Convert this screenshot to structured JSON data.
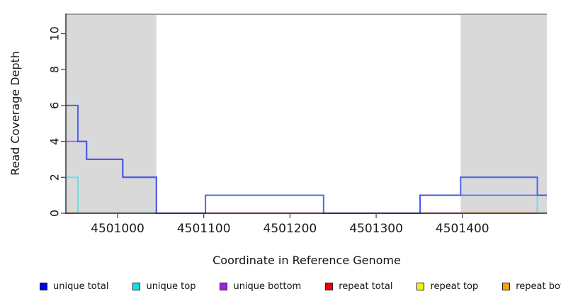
{
  "chart_data": {
    "type": "line",
    "subtype": "step-coverage",
    "title": "",
    "xlabel": "Coordinate in Reference Genome",
    "ylabel": "Read Coverage Depth",
    "x_range": [
      4500940,
      4501498
    ],
    "ylim": [
      0,
      11.08
    ],
    "top_line_depth": 11.08,
    "x_ticks": [
      4501000,
      4501100,
      4501200,
      4501300,
      4501400
    ],
    "y_ticks": [
      0,
      2,
      4,
      6,
      8,
      10
    ],
    "grid": "off",
    "legend_position": "bottom",
    "shade_color": "#d9d9d9",
    "shaded_regions": [
      {
        "x1": 4500940,
        "x2": 4501045
      },
      {
        "x1": 4501398,
        "x2": 4501498
      }
    ],
    "series": [
      {
        "name": "repeat top",
        "legend_color": "#f2f200",
        "plot_color": "#8fcf8f",
        "opacity": 1,
        "runs": [
          [
            [
              4500954,
              0
            ],
            [
              4501045,
              0
            ]
          ],
          [
            [
              4501487,
              0
            ],
            [
              4501498,
              0
            ]
          ]
        ]
      },
      {
        "name": "repeat bottom",
        "legend_color": "#ffa000",
        "plot_color": "#ff8c00",
        "opacity": 1,
        "runs": [
          [
            [
              4500940,
              0
            ],
            [
              4500954,
              0
            ]
          ],
          [
            [
              4501398,
              0
            ],
            [
              4501487,
              0
            ]
          ]
        ]
      },
      {
        "name": "repeat total",
        "legend_color": "#f00000",
        "plot_color": "#e04545",
        "opacity": 0.85,
        "runs": [
          [
            [
              4501102,
              0
            ],
            [
              4501398,
              0
            ]
          ]
        ]
      },
      {
        "name": "unique top",
        "legend_color": "#00e8e8",
        "plot_color": "#55e3e8",
        "opacity": 0.9,
        "runs": [
          [
            [
              4500940,
              2
            ],
            [
              4500954,
              2
            ],
            [
              4500954,
              0
            ]
          ],
          [
            [
              4501398,
              1
            ],
            [
              4501487,
              1
            ],
            [
              4501487,
              0
            ]
          ]
        ]
      },
      {
        "name": "unique bottom",
        "legend_color": "#9b20e8",
        "plot_color": "#7b2be0",
        "opacity": 0.6,
        "runs": [
          [
            [
              4500940,
              4
            ],
            [
              4500954,
              4
            ],
            [
              4500964,
              4
            ],
            [
              4500964,
              3
            ],
            [
              4501006,
              3
            ],
            [
              4501006,
              2
            ],
            [
              4501045,
              2
            ],
            [
              4501045,
              0
            ],
            [
              4501102,
              0
            ]
          ],
          [
            [
              4501239,
              0
            ],
            [
              4501351,
              0
            ],
            [
              4501351,
              1
            ],
            [
              4501498,
              1
            ]
          ]
        ]
      },
      {
        "name": "unique total",
        "legend_color": "#0000f0",
        "plot_color": "#3a55e8",
        "opacity": 0.9,
        "runs": [
          [
            [
              4500940,
              6
            ],
            [
              4500954,
              6
            ],
            [
              4500954,
              4
            ],
            [
              4500964,
              4
            ],
            [
              4500964,
              3
            ],
            [
              4501006,
              3
            ],
            [
              4501006,
              2
            ],
            [
              4501045,
              2
            ],
            [
              4501045,
              0
            ],
            [
              4501102,
              0
            ],
            [
              4501102,
              1
            ],
            [
              4501239,
              1
            ],
            [
              4501239,
              0
            ],
            [
              4501351,
              0
            ],
            [
              4501351,
              1
            ],
            [
              4501398,
              1
            ],
            [
              4501398,
              2
            ],
            [
              4501487,
              2
            ],
            [
              4501487,
              1
            ],
            [
              4501498,
              1
            ]
          ]
        ]
      }
    ]
  },
  "legend": {
    "items": [
      {
        "label": "unique total",
        "color": "#0000f0"
      },
      {
        "label": "unique top",
        "color": "#00e8e8"
      },
      {
        "label": "unique bottom",
        "color": "#9b20e8"
      },
      {
        "label": "repeat total",
        "color": "#f00000"
      },
      {
        "label": "repeat top",
        "color": "#f5f500"
      },
      {
        "label": "repeat bottom",
        "color": "#ffa000"
      }
    ]
  }
}
